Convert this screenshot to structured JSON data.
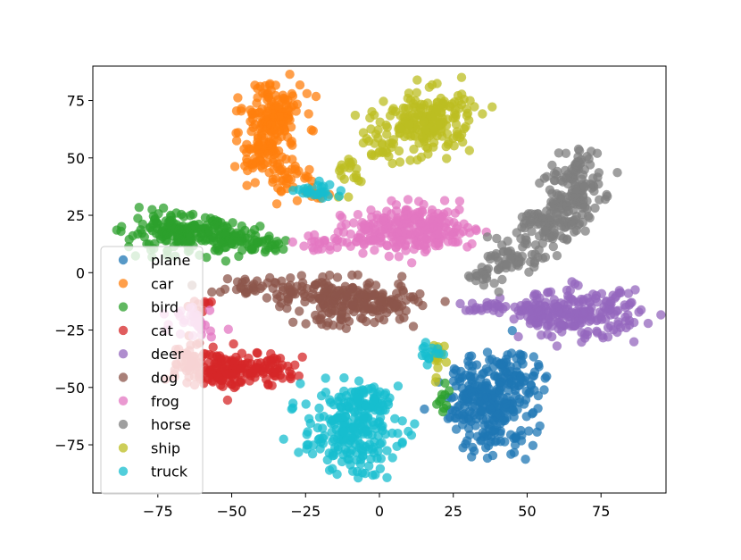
{
  "chart_data": {
    "type": "scatter",
    "title": "",
    "xlabel": "",
    "ylabel": "",
    "xlim": [
      -97,
      97
    ],
    "ylim": [
      -96,
      90
    ],
    "xticks": [
      -75,
      -50,
      -25,
      0,
      25,
      50,
      75
    ],
    "yticks": [
      75,
      50,
      25,
      0,
      -25,
      -50,
      -75
    ],
    "xtick_labels": [
      "−75",
      "−50",
      "−25",
      "0",
      "25",
      "50",
      "75"
    ],
    "ytick_labels": [
      "75",
      "50",
      "25",
      "0",
      "−25",
      "−50",
      "−75"
    ],
    "grid": false,
    "legend_position": "lower left",
    "point_alpha": 0.75,
    "series": [
      {
        "name": "plane",
        "color": "#1f77b4",
        "clusters": [
          {
            "center": [
              38,
              -58
            ],
            "spread": [
              7,
              11
            ],
            "n": 230
          },
          {
            "center": [
              44,
              -48
            ],
            "spread": [
              5,
              7
            ],
            "n": 70
          },
          {
            "center": [
              28,
              -53
            ],
            "spread": [
              3,
              5
            ],
            "n": 25
          }
        ]
      },
      {
        "name": "car",
        "color": "#ff7f0e",
        "clusters": [
          {
            "center": [
              -36,
              70
            ],
            "spread": [
              5,
              7
            ],
            "n": 120
          },
          {
            "center": [
              -40,
              55
            ],
            "spread": [
              4,
              7
            ],
            "n": 90
          },
          {
            "center": [
              -30,
              42
            ],
            "spread": [
              4,
              4
            ],
            "n": 40
          },
          {
            "center": [
              -20,
              34
            ],
            "spread": [
              2,
              2
            ],
            "n": 10
          }
        ]
      },
      {
        "name": "bird",
        "color": "#2ca02c",
        "clusters": [
          {
            "center": [
              -68,
              17
            ],
            "spread": [
              9,
              4
            ],
            "n": 170
          },
          {
            "center": [
              -50,
              15
            ],
            "spread": [
              6,
              3
            ],
            "n": 60
          },
          {
            "center": [
              -38,
              12
            ],
            "spread": [
              5,
              2
            ],
            "n": 25
          },
          {
            "center": [
              22,
              -55
            ],
            "spread": [
              1.5,
              5
            ],
            "n": 10
          }
        ]
      },
      {
        "name": "cat",
        "color": "#d62728",
        "clusters": [
          {
            "center": [
              -52,
              -42
            ],
            "spread": [
              8,
              4
            ],
            "n": 140
          },
          {
            "center": [
              -36,
              -42
            ],
            "spread": [
              4,
              3
            ],
            "n": 45
          },
          {
            "center": [
              -64,
              -38
            ],
            "spread": [
              3,
              5
            ],
            "n": 30
          },
          {
            "center": [
              -60,
              -15
            ],
            "spread": [
              2,
              2
            ],
            "n": 10
          }
        ]
      },
      {
        "name": "deer",
        "color": "#9467bd",
        "clusters": [
          {
            "center": [
              68,
              -18
            ],
            "spread": [
              10,
              5
            ],
            "n": 200
          },
          {
            "center": [
              52,
              -17
            ],
            "spread": [
              4,
              3
            ],
            "n": 40
          },
          {
            "center": [
              36,
              -16
            ],
            "spread": [
              4,
              1.5
            ],
            "n": 20
          }
        ]
      },
      {
        "name": "dog",
        "color": "#8c564b",
        "clusters": [
          {
            "center": [
              -10,
              -13
            ],
            "spread": [
              9,
              5
            ],
            "n": 170
          },
          {
            "center": [
              -28,
              -8
            ],
            "spread": [
              6,
              4
            ],
            "n": 45
          },
          {
            "center": [
              -45,
              -6
            ],
            "spread": [
              6,
              2
            ],
            "n": 25
          },
          {
            "center": [
              6,
              -12
            ],
            "spread": [
              4,
              4
            ],
            "n": 30
          }
        ]
      },
      {
        "name": "frog",
        "color": "#e377c2",
        "clusters": [
          {
            "center": [
              14,
              19
            ],
            "spread": [
              9,
              5
            ],
            "n": 220
          },
          {
            "center": [
              -6,
              17
            ],
            "spread": [
              6,
              3
            ],
            "n": 50
          },
          {
            "center": [
              -20,
              13
            ],
            "spread": [
              4,
              2
            ],
            "n": 20
          },
          {
            "center": [
              -62,
              -20
            ],
            "spread": [
              4,
              4
            ],
            "n": 30
          }
        ]
      },
      {
        "name": "horse",
        "color": "#7f7f7f",
        "clusters": [
          {
            "center": [
              64,
              34
            ],
            "spread": [
              5,
              8
            ],
            "n": 120
          },
          {
            "center": [
              57,
              20
            ],
            "spread": [
              5,
              5
            ],
            "n": 80
          },
          {
            "center": [
              46,
              6
            ],
            "spread": [
              4,
              3
            ],
            "n": 50
          },
          {
            "center": [
              36,
              0
            ],
            "spread": [
              3,
              3
            ],
            "n": 25
          },
          {
            "center": [
              68,
              47
            ],
            "spread": [
              3,
              3
            ],
            "n": 30
          }
        ]
      },
      {
        "name": "ship",
        "color": "#bcbd22",
        "clusters": [
          {
            "center": [
              16,
              66
            ],
            "spread": [
              8,
              7
            ],
            "n": 200
          },
          {
            "center": [
              0,
              55
            ],
            "spread": [
              3,
              3
            ],
            "n": 25
          },
          {
            "center": [
              -10,
              44
            ],
            "spread": [
              3,
              4
            ],
            "n": 20
          },
          {
            "center": [
              20,
              -38
            ],
            "spread": [
              2,
              5
            ],
            "n": 15
          }
        ]
      },
      {
        "name": "truck",
        "color": "#17becf",
        "clusters": [
          {
            "center": [
              -10,
              -69
            ],
            "spread": [
              8,
              9
            ],
            "n": 230
          },
          {
            "center": [
              -5,
              -55
            ],
            "spread": [
              4,
              3
            ],
            "n": 40
          },
          {
            "center": [
              -20,
              36
            ],
            "spread": [
              4,
              2
            ],
            "n": 25
          },
          {
            "center": [
              18,
              -35
            ],
            "spread": [
              2,
              2
            ],
            "n": 15
          }
        ]
      }
    ]
  }
}
